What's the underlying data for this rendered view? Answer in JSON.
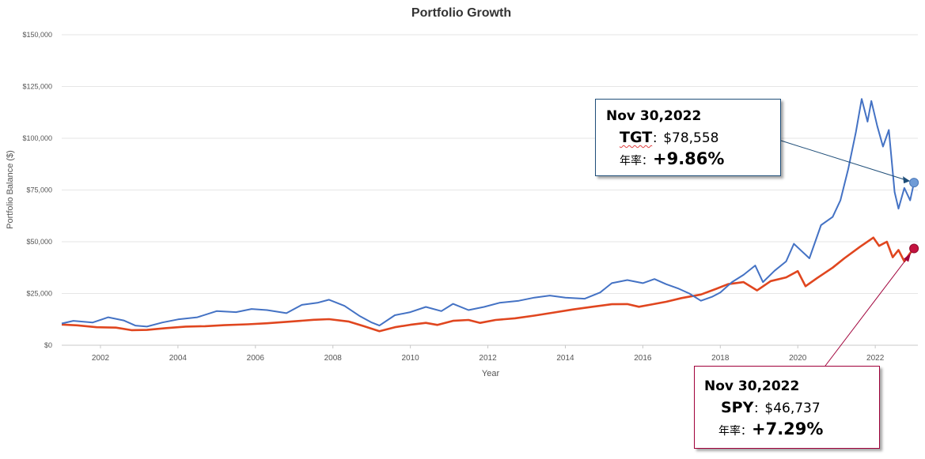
{
  "colors": {
    "tgt": "#4472c4",
    "spy": "#e0461f",
    "tgt_box": "#1f4e79",
    "spy_box": "#a0003a",
    "grid": "#e6e6e6"
  },
  "chart_data": {
    "type": "line",
    "title": "Portfolio Growth",
    "xlabel": "Year",
    "ylabel": "Portfolio Balance ($)",
    "xlim": [
      2001.0,
      2023.1
    ],
    "ylim": [
      0,
      150000
    ],
    "x_ticks": [
      "2002",
      "2004",
      "2006",
      "2008",
      "2010",
      "2012",
      "2014",
      "2016",
      "2018",
      "2020",
      "2022"
    ],
    "y_ticks": [
      "$0",
      "$25,000",
      "$50,000",
      "$75,000",
      "$100,000",
      "$125,000",
      "$150,000"
    ],
    "series": [
      {
        "name": "TGT",
        "points": [
          [
            2001.0,
            10500
          ],
          [
            2001.3,
            11800
          ],
          [
            2001.8,
            11000
          ],
          [
            2002.2,
            13500
          ],
          [
            2002.6,
            12000
          ],
          [
            2002.9,
            9500
          ],
          [
            2003.2,
            9000
          ],
          [
            2003.6,
            11000
          ],
          [
            2004.0,
            12500
          ],
          [
            2004.5,
            13500
          ],
          [
            2005.0,
            16500
          ],
          [
            2005.5,
            16000
          ],
          [
            2005.9,
            17500
          ],
          [
            2006.3,
            17000
          ],
          [
            2006.8,
            15500
          ],
          [
            2007.2,
            19500
          ],
          [
            2007.6,
            20500
          ],
          [
            2007.9,
            22000
          ],
          [
            2008.3,
            19000
          ],
          [
            2008.7,
            14000
          ],
          [
            2009.0,
            11000
          ],
          [
            2009.2,
            9500
          ],
          [
            2009.6,
            14500
          ],
          [
            2010.0,
            16000
          ],
          [
            2010.4,
            18500
          ],
          [
            2010.8,
            16500
          ],
          [
            2011.1,
            20000
          ],
          [
            2011.5,
            17000
          ],
          [
            2011.9,
            18500
          ],
          [
            2012.3,
            20500
          ],
          [
            2012.8,
            21500
          ],
          [
            2013.2,
            23000
          ],
          [
            2013.6,
            24000
          ],
          [
            2014.0,
            23000
          ],
          [
            2014.5,
            22500
          ],
          [
            2014.9,
            25500
          ],
          [
            2015.2,
            30000
          ],
          [
            2015.6,
            31500
          ],
          [
            2016.0,
            30000
          ],
          [
            2016.3,
            32000
          ],
          [
            2016.6,
            29500
          ],
          [
            2016.9,
            27500
          ],
          [
            2017.2,
            25000
          ],
          [
            2017.5,
            21500
          ],
          [
            2017.8,
            23500
          ],
          [
            2018.0,
            25500
          ],
          [
            2018.3,
            30500
          ],
          [
            2018.6,
            34000
          ],
          [
            2018.9,
            38500
          ],
          [
            2019.1,
            30500
          ],
          [
            2019.4,
            36000
          ],
          [
            2019.7,
            40500
          ],
          [
            2019.9,
            49000
          ],
          [
            2020.1,
            45500
          ],
          [
            2020.3,
            42000
          ],
          [
            2020.6,
            58000
          ],
          [
            2020.9,
            62000
          ],
          [
            2021.1,
            70000
          ],
          [
            2021.3,
            85000
          ],
          [
            2021.5,
            103000
          ],
          [
            2021.65,
            119000
          ],
          [
            2021.8,
            108000
          ],
          [
            2021.9,
            118000
          ],
          [
            2022.05,
            106000
          ],
          [
            2022.2,
            96000
          ],
          [
            2022.35,
            104000
          ],
          [
            2022.5,
            74000
          ],
          [
            2022.6,
            66000
          ],
          [
            2022.75,
            76000
          ],
          [
            2022.9,
            70000
          ],
          [
            2023.0,
            78558
          ]
        ]
      },
      {
        "name": "SPY",
        "points": [
          [
            2001.0,
            10000
          ],
          [
            2001.4,
            9600
          ],
          [
            2001.9,
            8700
          ],
          [
            2002.4,
            8500
          ],
          [
            2002.8,
            7300
          ],
          [
            2003.2,
            7400
          ],
          [
            2003.7,
            8300
          ],
          [
            2004.2,
            9000
          ],
          [
            2004.7,
            9200
          ],
          [
            2005.2,
            9700
          ],
          [
            2005.8,
            10100
          ],
          [
            2006.3,
            10600
          ],
          [
            2006.9,
            11400
          ],
          [
            2007.5,
            12300
          ],
          [
            2007.9,
            12600
          ],
          [
            2008.4,
            11500
          ],
          [
            2008.8,
            9200
          ],
          [
            2009.2,
            6800
          ],
          [
            2009.6,
            8700
          ],
          [
            2010.0,
            9900
          ],
          [
            2010.4,
            10800
          ],
          [
            2010.7,
            9800
          ],
          [
            2011.1,
            11800
          ],
          [
            2011.5,
            12200
          ],
          [
            2011.8,
            10800
          ],
          [
            2012.2,
            12200
          ],
          [
            2012.7,
            13000
          ],
          [
            2013.2,
            14300
          ],
          [
            2013.7,
            15800
          ],
          [
            2014.2,
            17300
          ],
          [
            2014.7,
            18600
          ],
          [
            2015.2,
            19800
          ],
          [
            2015.6,
            19900
          ],
          [
            2015.9,
            18600
          ],
          [
            2016.2,
            19600
          ],
          [
            2016.6,
            21000
          ],
          [
            2017.0,
            22800
          ],
          [
            2017.5,
            24500
          ],
          [
            2017.9,
            27300
          ],
          [
            2018.2,
            29500
          ],
          [
            2018.6,
            30500
          ],
          [
            2018.95,
            26500
          ],
          [
            2019.3,
            31000
          ],
          [
            2019.7,
            32800
          ],
          [
            2020.0,
            35800
          ],
          [
            2020.2,
            28500
          ],
          [
            2020.5,
            32500
          ],
          [
            2020.9,
            37500
          ],
          [
            2021.2,
            42000
          ],
          [
            2021.6,
            47500
          ],
          [
            2021.95,
            52000
          ],
          [
            2022.1,
            48000
          ],
          [
            2022.3,
            50000
          ],
          [
            2022.45,
            42500
          ],
          [
            2022.6,
            46000
          ],
          [
            2022.75,
            40500
          ],
          [
            2022.9,
            44500
          ],
          [
            2023.0,
            46737
          ]
        ]
      }
    ],
    "annotations": [
      {
        "date": "Nov 30,2022",
        "ticker": "TGT",
        "sep": "：",
        "value": "$78,558",
        "rate_label": "年率：",
        "rate": "+9.86%"
      },
      {
        "date": "Nov 30,2022",
        "ticker": "SPY",
        "sep": "：",
        "value": "$46,737",
        "rate_label": "年率：",
        "rate": "+7.29%"
      }
    ]
  }
}
